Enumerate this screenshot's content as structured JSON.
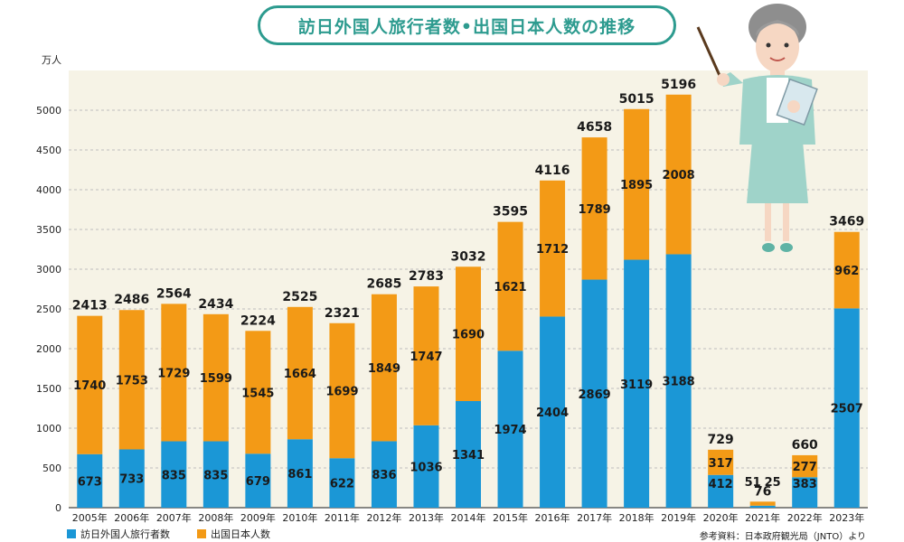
{
  "colors": {
    "visitors": "#1b97d6",
    "outbound": "#f39a16",
    "background": "#f6f3e6",
    "title": "#2d9b8f"
  },
  "title": "訪日外国人旅行者数•出国日本人数の推移",
  "source": "参考資料：日本政府観光局（JNTO）より",
  "chart_data": {
    "type": "bar",
    "stacked": true,
    "title": "訪日外国人旅行者数•出国日本人数の推移",
    "ylabel": "万人",
    "ylim": [
      0,
      5500
    ],
    "yticks": [
      0,
      500,
      1000,
      1500,
      2000,
      2500,
      3000,
      3500,
      4000,
      4500,
      5000
    ],
    "grid": true,
    "legend": "bottom-left",
    "categories": [
      "2005年",
      "2006年",
      "2007年",
      "2008年",
      "2009年",
      "2010年",
      "2011年",
      "2012年",
      "2013年",
      "2014年",
      "2015年",
      "2016年",
      "2017年",
      "2018年",
      "2019年",
      "2020年",
      "2021年",
      "2022年",
      "2023年"
    ],
    "series": [
      {
        "name": "訪日外国人旅行者数",
        "values": [
          673,
          733,
          835,
          835,
          679,
          861,
          622,
          836,
          1036,
          1341,
          1974,
          2404,
          2869,
          3119,
          3188,
          412,
          25,
          383,
          2507
        ]
      },
      {
        "name": "出国日本人数",
        "values": [
          1740,
          1753,
          1729,
          1599,
          1545,
          1664,
          1699,
          1849,
          1747,
          1690,
          1621,
          1712,
          1789,
          1895,
          2008,
          317,
          51,
          277,
          962
        ]
      }
    ],
    "totals": [
      2413,
      2486,
      2564,
      2434,
      2224,
      2525,
      2321,
      2685,
      2783,
      3032,
      3595,
      4116,
      4658,
      5015,
      5196,
      729,
      76,
      660,
      3469
    ]
  }
}
